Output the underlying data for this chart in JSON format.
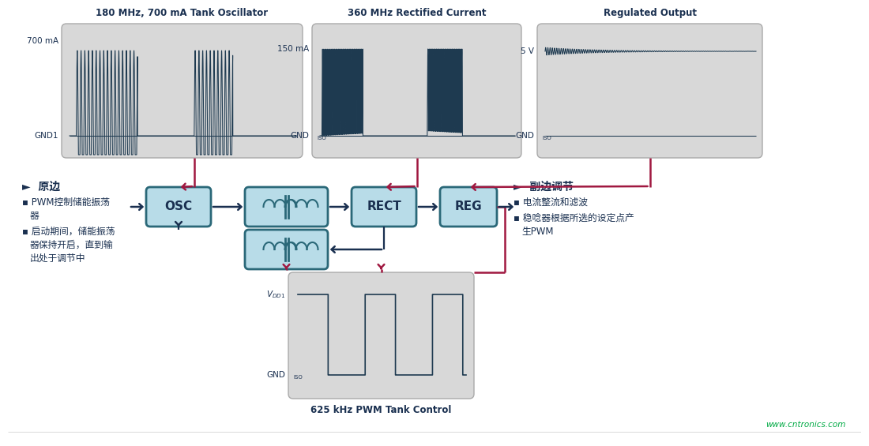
{
  "bg_color": "#ffffff",
  "panel_bg": "#d8d8d8",
  "box_fc": "#b8dce8",
  "box_ec": "#2a6878",
  "line_dark": "#1a3050",
  "red": "#a01840",
  "sig": "#1e3a50",
  "txt": "#1a3050",
  "title1": "180 MHz, 700 mA Tank Oscillator",
  "title2": "360 MHz Rectified Current",
  "title3": "Regulated Output",
  "title4": "625 kHz PWM Tank Control",
  "lbl_700": "700 mA",
  "lbl_gnd1": "GND1",
  "lbl_150": "150 mA",
  "lbl_gndiso": "GND",
  "lbl_iso": "ISO",
  "lbl_5v": "5 V",
  "lbl_vdd1": "V",
  "lbl_dd1": "DD1",
  "lbl_osc": "OSC",
  "lbl_rect": "RECT",
  "lbl_reg": "REG",
  "pt": "►",
  "p_head": "原边",
  "p1": "PWM控制储能振荡",
  "p1b": "器",
  "p2": "启动期间，储能振荡",
  "p2b": "器保持开启，直到输",
  "p2c": "出处于调节中",
  "st": "►",
  "s_head": "副边调节",
  "s1": "电流整流和滤波",
  "s2": "稳唸器根据所选的设定点产",
  "s2b": "生PWM",
  "watermark": "www.cntronics.com",
  "wm_color": "#00aa44",
  "bullet": "▪"
}
